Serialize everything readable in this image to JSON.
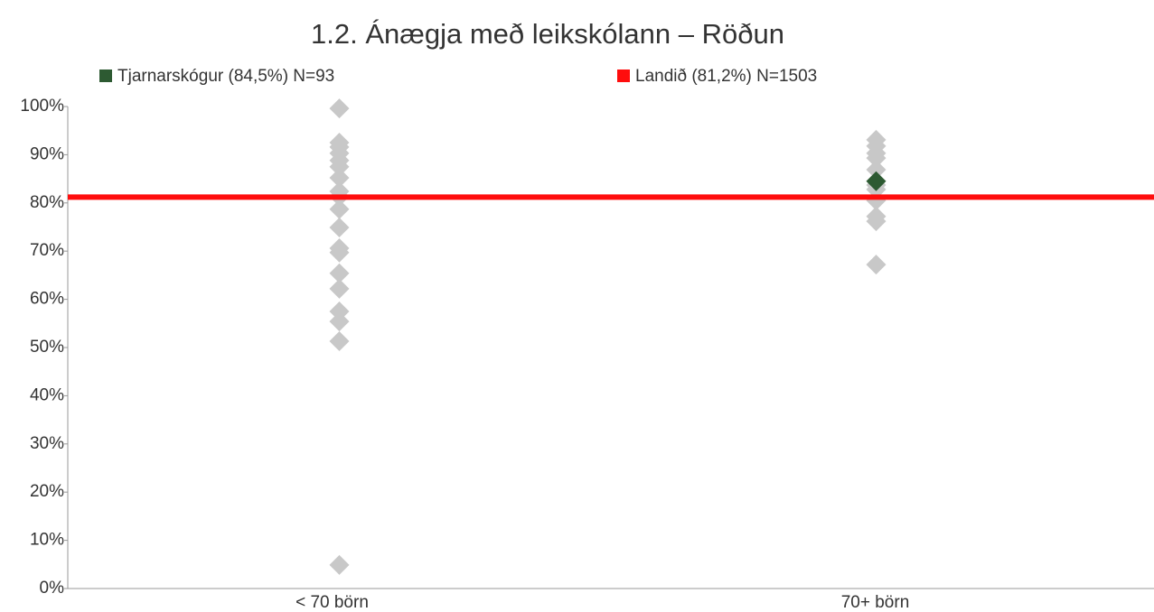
{
  "chart_data": {
    "type": "strip",
    "title": "1.2. Ánægja með leikskólann – Röðun",
    "categories": [
      "< 70 börn",
      "70+ börn"
    ],
    "ylim": [
      0,
      100
    ],
    "yticks": [
      {
        "value": 0,
        "label": "0%"
      },
      {
        "value": 10,
        "label": "10%"
      },
      {
        "value": 20,
        "label": "20%"
      },
      {
        "value": 30,
        "label": "30%"
      },
      {
        "value": 40,
        "label": "40%"
      },
      {
        "value": 50,
        "label": "50%"
      },
      {
        "value": 60,
        "label": "60%"
      },
      {
        "value": 70,
        "label": "70%"
      },
      {
        "value": 80,
        "label": "80%"
      },
      {
        "value": 90,
        "label": "90%"
      },
      {
        "value": 100,
        "label": "100%"
      }
    ],
    "series": [
      {
        "color": "#c8c8c8",
        "values": [
          [
            99.6,
            92.5,
            91.6,
            90.3,
            88.8,
            87.5,
            85.2,
            82.4,
            81.3,
            78.7,
            74.9,
            70.6,
            69.7,
            65.4,
            62.2,
            57.5,
            55.4,
            51.3,
            4.9
          ],
          [
            93.1,
            91.8,
            90.3,
            89.3,
            86.9,
            83.7,
            82.8,
            80.5,
            77.2,
            76.2,
            67.2
          ]
        ]
      },
      {
        "name": "Tjarnarskógur (84,5%) N=93",
        "color": "#2d5a32",
        "values": [
          [],
          [
            84.5
          ]
        ]
      }
    ],
    "reference_lines": [
      {
        "name": "Landið (81,2%) N=1503",
        "color": "#ff0d0d",
        "value": 81.2
      }
    ]
  }
}
